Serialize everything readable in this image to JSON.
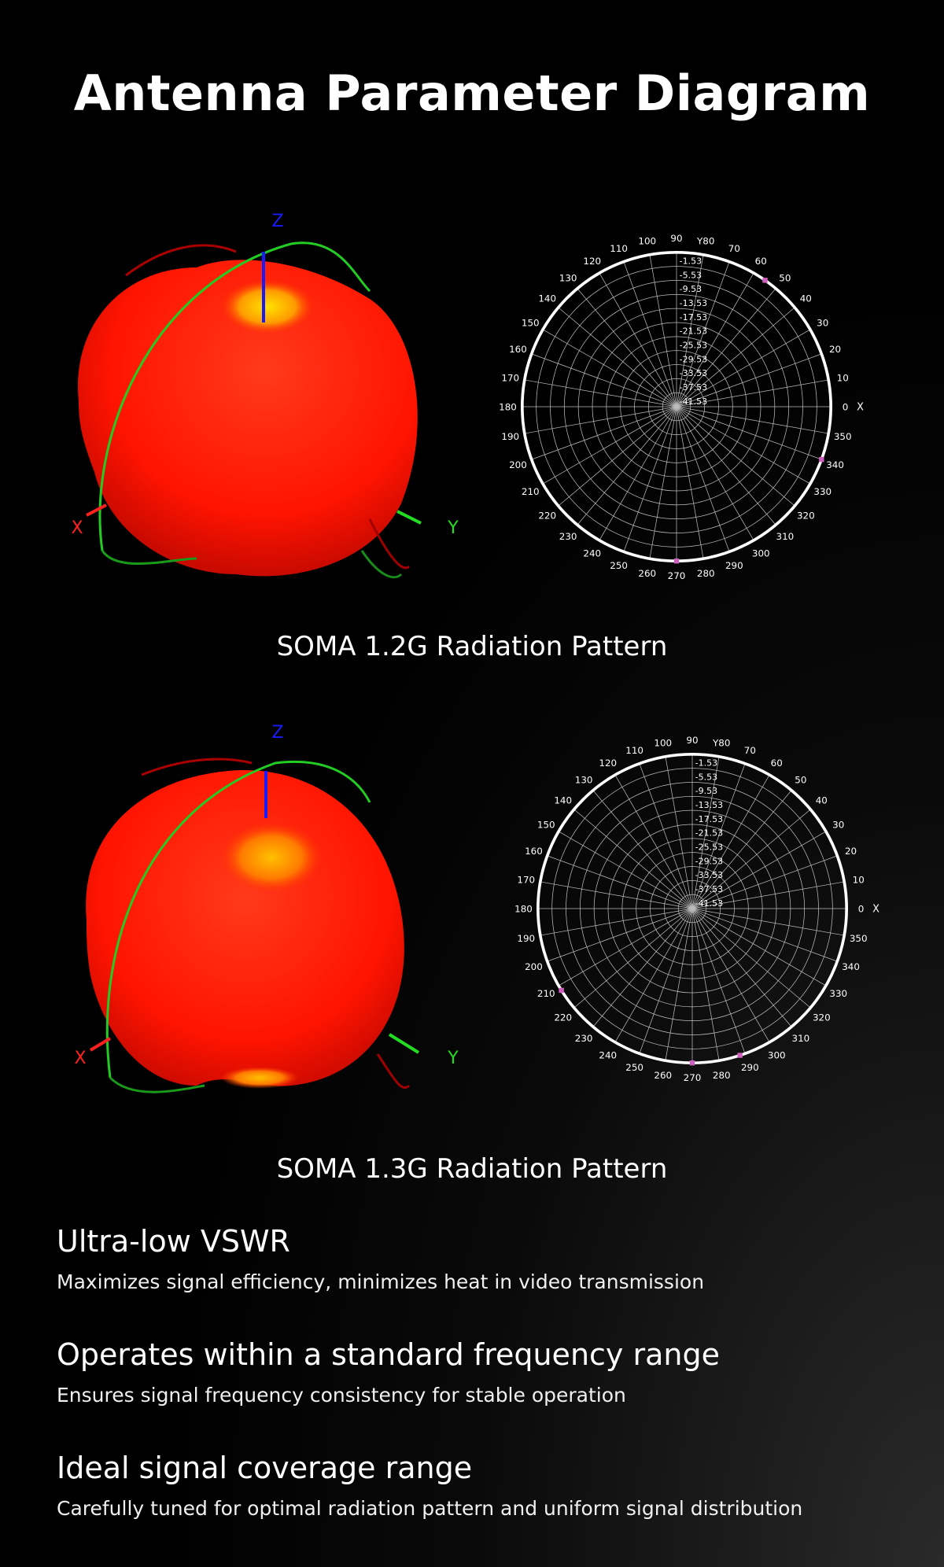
{
  "page": {
    "title": "Antenna Parameter Diagram"
  },
  "colors": {
    "background": "#000000",
    "pattern_red": "#ff1a00",
    "pattern_hot": "#ffd200",
    "axis_x": "#ff2020",
    "axis_y": "#22cc22",
    "axis_z": "#1a1aff",
    "marker": "#d060c0"
  },
  "axis_letters": {
    "x": "X",
    "y": "Y",
    "z": "Z"
  },
  "polar": {
    "angles": [
      0,
      10,
      20,
      30,
      40,
      50,
      60,
      70,
      80,
      90,
      100,
      110,
      120,
      130,
      140,
      150,
      160,
      170,
      180,
      190,
      200,
      210,
      220,
      230,
      240,
      250,
      260,
      270,
      280,
      290,
      300,
      310,
      320,
      330,
      340,
      350
    ],
    "angle_labels": [
      "0",
      "10",
      "20",
      "30",
      "40",
      "50",
      "60",
      "70",
      "Y80",
      "90",
      "100",
      "110",
      "120",
      "130",
      "140",
      "150",
      "160",
      "170",
      "180",
      "190",
      "200",
      "210",
      "220",
      "230",
      "240",
      "250",
      "260",
      "270",
      "280",
      "290",
      "300",
      "310",
      "320",
      "330",
      "340",
      "350"
    ],
    "zero_suffix": "X",
    "radial_labels": [
      "-1.53",
      "-5.53",
      "-9.53",
      "-13.53",
      "-17.53",
      "-21.53",
      "-25.53",
      "-29.53",
      "-33.53",
      "-37.53",
      "-41.53"
    ]
  },
  "patterns": [
    {
      "id": "1.2g",
      "caption": "SOMA 1.2G Radiation Pattern",
      "marker_angles": [
        55,
        270,
        340
      ]
    },
    {
      "id": "1.3g",
      "caption": "SOMA 1.3G Radiation Pattern",
      "marker_angles": [
        212,
        270,
        288
      ]
    }
  ],
  "features": [
    {
      "title": "Ultra-low VSWR",
      "description": "Maximizes signal efficiency, minimizes heat in video transmission"
    },
    {
      "title": "Operates within a standard frequency range",
      "description": "Ensures signal frequency consistency for stable operation"
    },
    {
      "title": "Ideal signal coverage range",
      "description": "Carefully tuned for optimal radiation pattern and uniform signal distribution"
    }
  ]
}
